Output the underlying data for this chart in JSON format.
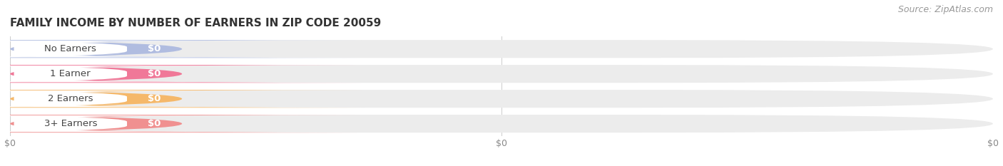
{
  "title": "FAMILY INCOME BY NUMBER OF EARNERS IN ZIP CODE 20059",
  "source": "Source: ZipAtlas.com",
  "categories": [
    "No Earners",
    "1 Earner",
    "2 Earners",
    "3+ Earners"
  ],
  "values": [
    0,
    0,
    0,
    0
  ],
  "bar_colors": [
    "#b0bce0",
    "#f07898",
    "#f5b86a",
    "#f09090"
  ],
  "value_labels": [
    "$0",
    "$0",
    "$0",
    "$0"
  ],
  "title_fontsize": 11,
  "source_fontsize": 9,
  "label_fontsize": 9.5,
  "value_fontsize": 9.5,
  "background_color": "#ffffff",
  "bar_bg_color": "#ececec",
  "white_label_bg": "#ffffff"
}
